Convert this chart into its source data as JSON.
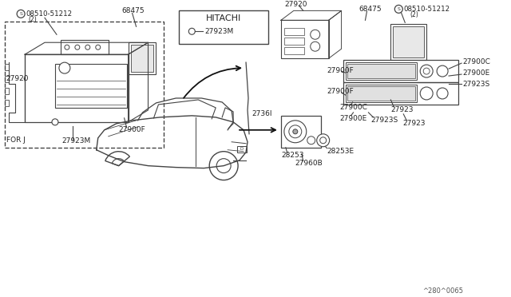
{
  "bg_color": "#ffffff",
  "line_color": "#444444",
  "fig_width": 6.4,
  "fig_height": 3.72,
  "dpi": 100,
  "bottom_label": "^280^0065",
  "hitachi_label": "HITACHI",
  "for_j_label": "FOR J",
  "parts": {
    "08510_51212": "08510-51212",
    "68475": "68475",
    "27920": "27920",
    "27900F": "27900F",
    "27923M": "27923M",
    "27900C": "27900C",
    "27900E": "27900E",
    "27923S": "27923S",
    "27923": "27923",
    "27361": "2736I",
    "28253": "28253",
    "28253E": "28253E",
    "27960B": "27960B"
  }
}
